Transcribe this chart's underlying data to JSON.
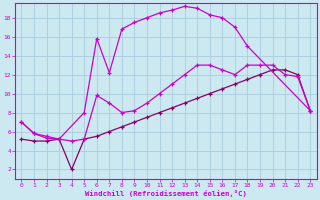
{
  "title": "",
  "xlabel": "Windchill (Refroidissement éolien,°C)",
  "bg_color": "#cce8f0",
  "grid_color": "#aaccdd",
  "line_color_bright": "#cc00cc",
  "line_color_dark": "#880066",
  "xlim": [
    -0.5,
    23.5
  ],
  "ylim": [
    1,
    19.5
  ],
  "xticks": [
    0,
    1,
    2,
    3,
    4,
    5,
    6,
    7,
    8,
    9,
    10,
    11,
    12,
    13,
    14,
    15,
    16,
    17,
    18,
    19,
    20,
    21,
    22,
    23
  ],
  "yticks": [
    2,
    4,
    6,
    8,
    10,
    12,
    14,
    16,
    18
  ],
  "series_upper_x": [
    0,
    1,
    2,
    3,
    5,
    6,
    7,
    8,
    9,
    10,
    11,
    12,
    13,
    14,
    15,
    16,
    17,
    18,
    23
  ],
  "series_upper_y": [
    7.0,
    5.8,
    5.5,
    5.2,
    8.0,
    15.8,
    12.2,
    16.8,
    17.5,
    18.0,
    18.5,
    18.8,
    19.2,
    19.0,
    18.3,
    18.0,
    17.0,
    15.0,
    8.2
  ],
  "series_mid_x": [
    0,
    1,
    2,
    3,
    4,
    5,
    6,
    7,
    8,
    9,
    10,
    11,
    12,
    13,
    14,
    15,
    16,
    17,
    18,
    19,
    20,
    21,
    22,
    23
  ],
  "series_mid_y": [
    7.0,
    5.8,
    5.3,
    5.2,
    5.0,
    5.2,
    9.8,
    9.0,
    8.0,
    8.2,
    9.0,
    10.0,
    11.0,
    12.0,
    13.0,
    13.0,
    12.5,
    12.0,
    13.0,
    13.0,
    13.0,
    12.0,
    11.8,
    8.2
  ],
  "series_lower_x": [
    0,
    1,
    2,
    3,
    4,
    5,
    6,
    7,
    8,
    9,
    10,
    11,
    12,
    13,
    14,
    15,
    16,
    17,
    18,
    19,
    20,
    21,
    22,
    23
  ],
  "series_lower_y": [
    5.2,
    5.0,
    5.0,
    5.2,
    2.0,
    5.2,
    5.5,
    6.0,
    6.5,
    7.0,
    7.5,
    8.0,
    8.5,
    9.0,
    9.5,
    10.0,
    10.5,
    11.0,
    11.5,
    12.0,
    12.5,
    12.5,
    12.0,
    8.2
  ]
}
